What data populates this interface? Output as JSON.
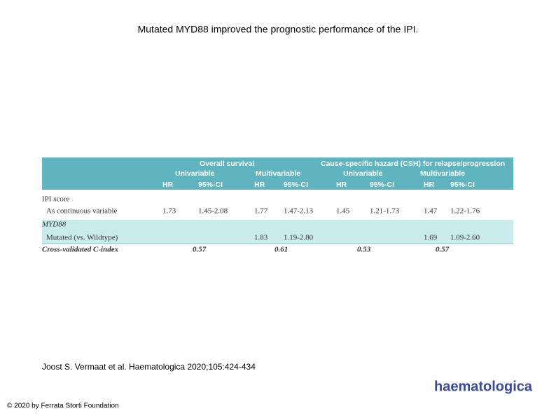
{
  "title": "Mutated MYD88 improved the prognostic performance of the IPI.",
  "table": {
    "groups": [
      "Overall survival",
      "Cause-specific hazard (CSH) for relapse/progression"
    ],
    "subgroups": [
      "Univariable",
      "Multivariable",
      "Univariable",
      "Multivariable"
    ],
    "columns": [
      "HR",
      "95%-CI",
      "HR",
      "95%-CI",
      "HR",
      "95%-CI",
      "HR",
      "95%-CI"
    ],
    "rows": [
      {
        "label": "IPI score",
        "cells": [
          null,
          null,
          null,
          null,
          null,
          null,
          null,
          null
        ]
      },
      {
        "label": "As continuous variable",
        "cells": [
          "1.73",
          "1.45-2.08",
          "1.77",
          "1.47-2.13",
          "1.45",
          "1.21-1.73",
          "1.47",
          "1.22-1.76"
        ]
      },
      {
        "label": "MYD88",
        "cells": [
          null,
          null,
          null,
          null,
          null,
          null,
          null,
          null
        ]
      },
      {
        "label": "Mutated (vs. Wildtype)",
        "cells": [
          null,
          null,
          "1.83",
          "1.19-2.80",
          null,
          null,
          "1.69",
          "1.09-2.60"
        ]
      }
    ],
    "cindex": {
      "label": "Cross-validated C-index",
      "values": [
        "0.57",
        "0.61",
        "0.53",
        "0.57"
      ]
    }
  },
  "citation": "Joost S. Vermaat et al. Haematologica 2020;105:424-434",
  "copyright": "© 2020 by Ferrata Storti Foundation",
  "logo": "haematologica"
}
